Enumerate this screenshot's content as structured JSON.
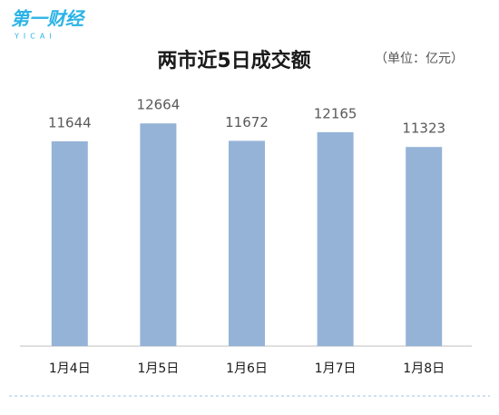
{
  "brand": {
    "name": "第一财经",
    "latin": "YICAI"
  },
  "chart_data": {
    "type": "bar",
    "title": "两市近5日成交额",
    "unit": "（单位：亿元）",
    "categories": [
      "1月4日",
      "1月5日",
      "1月6日",
      "1月7日",
      "1月8日"
    ],
    "values": [
      11644,
      12664,
      11672,
      12165,
      11323
    ],
    "color": "#95b3d7"
  }
}
